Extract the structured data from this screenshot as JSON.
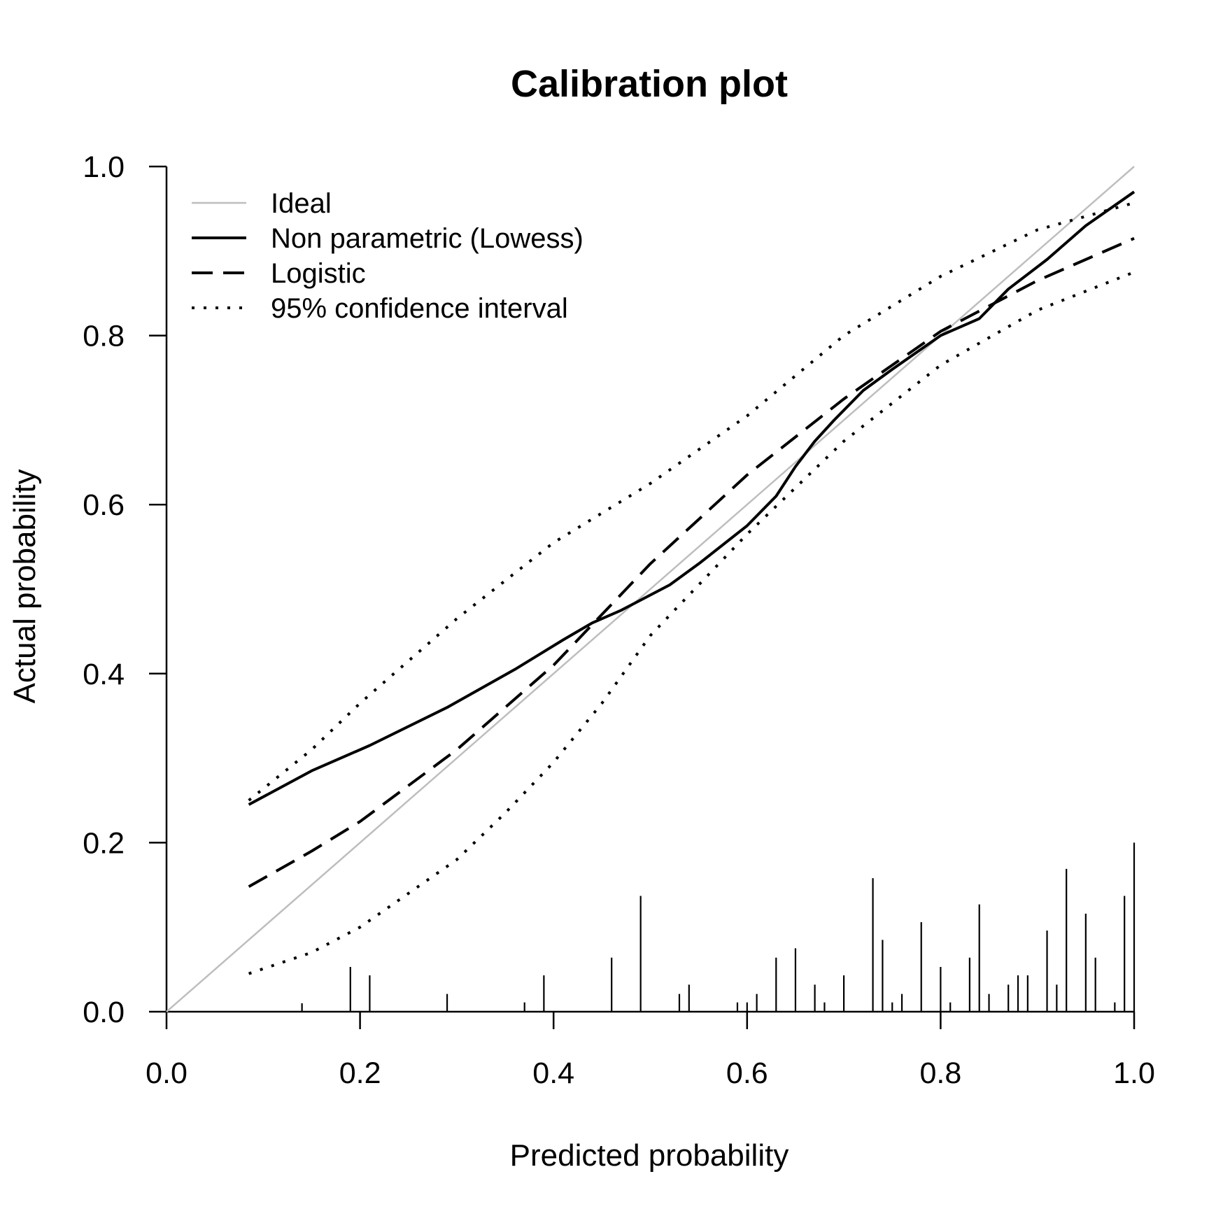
{
  "chart_data": {
    "type": "line",
    "title": "Calibration plot",
    "xlabel": "Predicted probability",
    "ylabel": "Actual probability",
    "xlim": [
      0,
      1
    ],
    "ylim": [
      0,
      1
    ],
    "x_ticks": [
      "0.0",
      "0.2",
      "0.4",
      "0.6",
      "0.8",
      "1.0"
    ],
    "y_ticks": [
      "0.0",
      "0.2",
      "0.4",
      "0.6",
      "0.8",
      "1.0"
    ],
    "grid": false,
    "legend_position": "top-left",
    "legend": [
      {
        "label": "Ideal",
        "style": "solid",
        "color": "#bebebe"
      },
      {
        "label": "Non parametric (Lowess)",
        "style": "solid",
        "color": "#000000"
      },
      {
        "label": "Logistic",
        "style": "dashed",
        "color": "#000000"
      },
      {
        "label": "95% confidence interval",
        "style": "dotted",
        "color": "#000000"
      }
    ],
    "series": [
      {
        "name": "Ideal",
        "style": "solid",
        "color": "#bebebe",
        "x": [
          0,
          1
        ],
        "y": [
          0,
          1
        ]
      },
      {
        "name": "Non parametric (Lowess)",
        "style": "solid",
        "color": "#000000",
        "x": [
          0.085,
          0.15,
          0.21,
          0.29,
          0.36,
          0.41,
          0.44,
          0.47,
          0.52,
          0.55,
          0.6,
          0.63,
          0.65,
          0.67,
          0.69,
          0.72,
          0.75,
          0.8,
          0.84,
          0.87,
          0.91,
          0.95,
          1.0
        ],
        "y": [
          0.245,
          0.285,
          0.315,
          0.36,
          0.405,
          0.44,
          0.46,
          0.475,
          0.505,
          0.53,
          0.575,
          0.61,
          0.645,
          0.675,
          0.7,
          0.735,
          0.76,
          0.8,
          0.82,
          0.855,
          0.89,
          0.93,
          0.97
        ]
      },
      {
        "name": "Logistic",
        "style": "dashed",
        "color": "#000000",
        "x": [
          0.085,
          0.15,
          0.2,
          0.3,
          0.4,
          0.5,
          0.6,
          0.7,
          0.8,
          0.9,
          1.0
        ],
        "y": [
          0.148,
          0.19,
          0.225,
          0.31,
          0.41,
          0.53,
          0.635,
          0.725,
          0.805,
          0.865,
          0.915
        ]
      },
      {
        "name": "95% confidence interval (upper)",
        "style": "dotted",
        "color": "#000000",
        "x": [
          0.085,
          0.15,
          0.2,
          0.3,
          0.4,
          0.5,
          0.6,
          0.7,
          0.8,
          0.9,
          1.0
        ],
        "y": [
          0.25,
          0.31,
          0.365,
          0.465,
          0.555,
          0.625,
          0.705,
          0.8,
          0.87,
          0.925,
          0.957
        ]
      },
      {
        "name": "95% confidence interval (lower)",
        "style": "dotted",
        "color": "#000000",
        "x": [
          0.085,
          0.15,
          0.2,
          0.3,
          0.35,
          0.4,
          0.45,
          0.5,
          0.6,
          0.7,
          0.8,
          0.9,
          1.0
        ],
        "y": [
          0.045,
          0.07,
          0.1,
          0.18,
          0.235,
          0.295,
          0.365,
          0.445,
          0.565,
          0.675,
          0.765,
          0.83,
          0.875
        ]
      }
    ],
    "rug": {
      "x": [
        0.14,
        0.19,
        0.21,
        0.29,
        0.37,
        0.39,
        0.46,
        0.49,
        0.53,
        0.54,
        0.59,
        0.6,
        0.61,
        0.63,
        0.65,
        0.67,
        0.68,
        0.7,
        0.73,
        0.74,
        0.75,
        0.76,
        0.78,
        0.8,
        0.81,
        0.83,
        0.84,
        0.85,
        0.87,
        0.88,
        0.89,
        0.91,
        0.92,
        0.93,
        0.95,
        0.96,
        0.98,
        0.99,
        1.0
      ],
      "y": [
        0.01,
        0.053,
        0.043,
        0.021,
        0.011,
        0.043,
        0.064,
        0.137,
        0.021,
        0.032,
        0.011,
        0.011,
        0.021,
        0.064,
        0.075,
        0.032,
        0.011,
        0.043,
        0.158,
        0.085,
        0.011,
        0.021,
        0.106,
        0.053,
        0.011,
        0.064,
        0.127,
        0.021,
        0.032,
        0.043,
        0.043,
        0.096,
        0.032,
        0.169,
        0.116,
        0.064,
        0.011,
        0.137,
        0.2
      ]
    }
  }
}
